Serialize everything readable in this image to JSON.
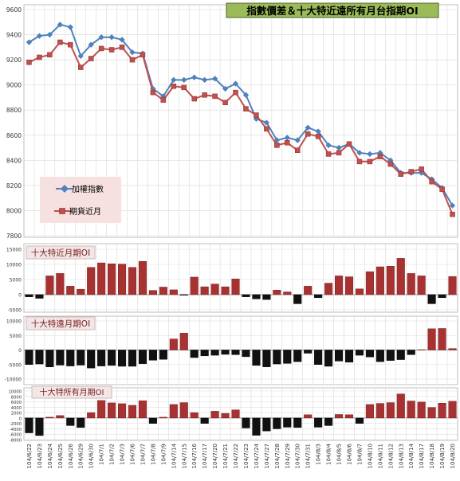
{
  "chart_data": [
    {
      "type": "line",
      "title": "指數價差＆十大特近遠所有月台指期OI",
      "legend_position": "left-middle",
      "grid": true,
      "ylim": [
        7800,
        9600
      ],
      "yticks": [
        7800,
        8000,
        8200,
        8400,
        8600,
        8800,
        9000,
        9200,
        9400,
        9600
      ],
      "series": [
        {
          "name": "加權指數",
          "color": "#4f81bd",
          "marker": "diamond",
          "values": [
            9340,
            9390,
            9400,
            9480,
            9460,
            9230,
            9320,
            9380,
            9380,
            9360,
            9260,
            9250,
            8970,
            8910,
            9040,
            9040,
            9060,
            9040,
            9050,
            8970,
            9010,
            8920,
            8730,
            8700,
            8560,
            8580,
            8560,
            8660,
            8630,
            8520,
            8500,
            8530,
            8460,
            8450,
            8460,
            8400,
            8300,
            8300,
            8300,
            8250,
            8180,
            8040
          ]
        },
        {
          "name": "期貨近月",
          "color": "#c0504d",
          "marker": "square",
          "values": [
            9180,
            9220,
            9240,
            9340,
            9320,
            9140,
            9210,
            9290,
            9280,
            9300,
            9200,
            9240,
            8940,
            8880,
            8990,
            8980,
            8890,
            8920,
            8910,
            8860,
            8940,
            8810,
            8760,
            8650,
            8520,
            8540,
            8480,
            8610,
            8590,
            8450,
            8460,
            8530,
            8390,
            8390,
            8430,
            8370,
            8290,
            8310,
            8330,
            8230,
            8170,
            7970
          ]
        }
      ]
    },
    {
      "type": "bar",
      "title": "十大特近月期OI",
      "ylim": [
        -5000,
        15000
      ],
      "yticks": [
        -5000,
        0,
        5000,
        10000,
        15000
      ],
      "values": [
        -700,
        -1200,
        6200,
        7000,
        2800,
        1800,
        9000,
        10500,
        10200,
        10100,
        9000,
        11000,
        1400,
        2500,
        1600,
        -200,
        5800,
        2600,
        3500,
        2600,
        5200,
        -700,
        -1400,
        -1600,
        1500,
        900,
        -3000,
        2800,
        -1000,
        3800,
        6200,
        5900,
        1900,
        7600,
        9200,
        9400,
        12000,
        7000,
        6200,
        -3000,
        -1000,
        6000
      ]
    },
    {
      "type": "bar",
      "title": "十大特遠月期OI",
      "ylim": [
        -10000,
        10000
      ],
      "yticks": [
        -10000,
        -5000,
        0,
        5000,
        10000
      ],
      "values": [
        -5000,
        -4800,
        -5800,
        -5200,
        -5500,
        -5200,
        -6200,
        -5500,
        -5300,
        -5600,
        -5600,
        -4700,
        -3500,
        -3200,
        3800,
        5800,
        -2600,
        -2000,
        -1800,
        -1500,
        -1600,
        -2300,
        -5300,
        -5800,
        -4800,
        -4600,
        -4000,
        -1100,
        -5000,
        -5600,
        -3800,
        -4200,
        -1800,
        -2400,
        -4000,
        -3600,
        -3300,
        -1600,
        100,
        7300,
        7400,
        500
      ]
    },
    {
      "type": "bar",
      "title": "十大特所有月期OI",
      "ylim": [
        -8000,
        10000
      ],
      "yticks": [
        -8000,
        -6000,
        -4000,
        -2000,
        0,
        2000,
        4000,
        6000,
        8000,
        10000
      ],
      "values": [
        -5500,
        -6500,
        300,
        900,
        -2800,
        -3500,
        2000,
        6500,
        5600,
        5300,
        4700,
        6400,
        -2000,
        300,
        5000,
        5700,
        2000,
        -2000,
        2500,
        1700,
        3000,
        -3700,
        -6400,
        -4800,
        -4000,
        -3400,
        -3500,
        1200,
        -3400,
        -2800,
        1300,
        1200,
        -2000,
        5000,
        5400,
        5700,
        8900,
        6300,
        5900,
        3900,
        5500,
        6200
      ]
    }
  ],
  "categories": [
    "104/6/22",
    "104/6/23",
    "104/6/24",
    "104/6/25",
    "104/6/26",
    "104/6/29",
    "104/6/30",
    "104/7/1",
    "104/7/2",
    "104/7/3",
    "104/7/6",
    "104/7/7",
    "104/7/8",
    "104/7/9",
    "104/7/14",
    "104/7/15",
    "104/7/16",
    "104/7/17",
    "104/7/20",
    "104/7/21",
    "104/7/22",
    "104/7/23",
    "104/7/24",
    "104/7/27",
    "104/7/28",
    "104/7/29",
    "104/7/30",
    "104/7/31",
    "104/8/3",
    "104/8/4",
    "104/8/5",
    "104/8/6",
    "104/8/7",
    "104/8/10",
    "104/8/11",
    "104/8/12",
    "104/8/13",
    "104/8/14",
    "104/8/17",
    "104/8/18",
    "104/8/19",
    "104/8/20"
  ],
  "colors": {
    "bar_positive": "#a83232",
    "bar_negative": "#111111",
    "bar_edge": "#7a1f1f",
    "label_background": "#f2e6e6",
    "legend_background": "#f7e0e0",
    "title_background": "#9bbb59",
    "grid": "#d9d9d9"
  }
}
